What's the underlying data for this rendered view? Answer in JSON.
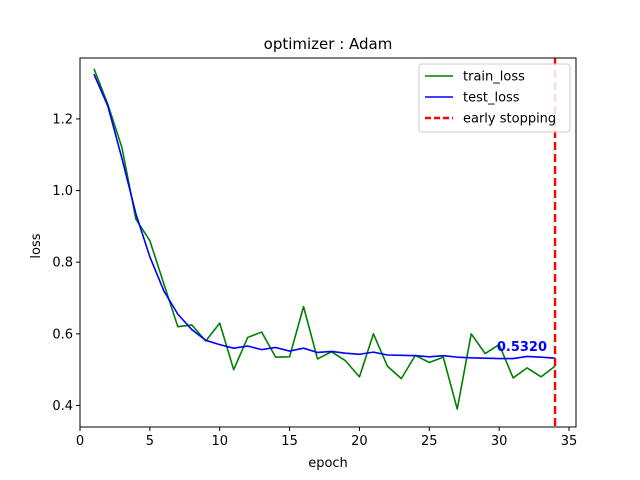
{
  "chart_data": {
    "type": "line",
    "title": "optimizer : Adam",
    "xlabel": "epoch",
    "ylabel": "loss",
    "xlim": [
      0,
      35.5
    ],
    "ylim": [
      0.34,
      1.37
    ],
    "xticks": [
      0,
      5,
      10,
      15,
      20,
      25,
      30,
      35
    ],
    "yticks": [
      0.4,
      0.6,
      0.8,
      1.0,
      1.2
    ],
    "xtick_labels": [
      "0",
      "5",
      "10",
      "15",
      "20",
      "25",
      "30",
      "35"
    ],
    "ytick_labels": [
      "0.4",
      "0.6",
      "0.8",
      "1.0",
      "1.2"
    ],
    "grid": false,
    "legend_position": "top-right",
    "x": [
      1,
      2,
      3,
      4,
      5,
      6,
      7,
      8,
      9,
      10,
      11,
      12,
      13,
      14,
      15,
      16,
      17,
      18,
      19,
      20,
      21,
      22,
      23,
      24,
      25,
      26,
      27,
      28,
      29,
      30,
      31,
      32,
      33,
      34
    ],
    "series": [
      {
        "name": "train_loss",
        "color": "#008000",
        "values": [
          1.34,
          1.24,
          1.12,
          0.92,
          0.86,
          0.74,
          0.62,
          0.625,
          0.58,
          0.63,
          0.5,
          0.59,
          0.605,
          0.535,
          0.536,
          0.676,
          0.53,
          0.55,
          0.525,
          0.48,
          0.6,
          0.51,
          0.475,
          0.54,
          0.52,
          0.535,
          0.39,
          0.6,
          0.545,
          0.57,
          0.477,
          0.505,
          0.48,
          0.51
        ]
      },
      {
        "name": "test_loss",
        "color": "#0000ff",
        "values": [
          1.325,
          1.235,
          1.09,
          0.935,
          0.815,
          0.72,
          0.655,
          0.612,
          0.582,
          0.57,
          0.56,
          0.566,
          0.556,
          0.562,
          0.552,
          0.56,
          0.548,
          0.551,
          0.546,
          0.543,
          0.549,
          0.541,
          0.54,
          0.539,
          0.536,
          0.539,
          0.535,
          0.533,
          0.532,
          0.531,
          0.531,
          0.537,
          0.535,
          0.532
        ]
      }
    ],
    "early_stopping": {
      "name": "early stopping",
      "x": 34,
      "color": "#ff0000"
    },
    "annotation": {
      "text": "0.5320",
      "x": 34,
      "y": 0.532,
      "color": "#0000ff"
    }
  }
}
